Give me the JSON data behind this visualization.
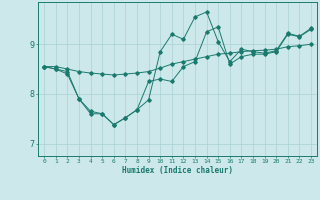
{
  "xlabel": "Humidex (Indice chaleur)",
  "bg_color": "#cce8ea",
  "line_color": "#1a7a6e",
  "grid_color": "#aad0d4",
  "xlim": [
    -0.5,
    23.5
  ],
  "ylim": [
    6.75,
    9.85
  ],
  "yticks": [
    7,
    8,
    9
  ],
  "xticks": [
    0,
    1,
    2,
    3,
    4,
    5,
    6,
    7,
    8,
    9,
    10,
    11,
    12,
    13,
    14,
    15,
    16,
    17,
    18,
    19,
    20,
    21,
    22,
    23
  ],
  "series1_x": [
    0,
    1,
    2,
    3,
    4,
    5,
    6,
    7,
    8,
    9,
    10,
    11,
    12,
    13,
    14,
    15,
    16,
    17,
    18,
    19,
    20,
    21,
    22,
    23
  ],
  "series1_y": [
    8.55,
    8.55,
    8.5,
    8.45,
    8.42,
    8.4,
    8.38,
    8.4,
    8.42,
    8.45,
    8.52,
    8.6,
    8.65,
    8.7,
    8.75,
    8.8,
    8.82,
    8.85,
    8.87,
    8.88,
    8.9,
    8.95,
    8.97,
    9.0
  ],
  "series2_x": [
    0,
    1,
    2,
    3,
    4,
    5,
    6,
    7,
    8,
    9,
    10,
    11,
    12,
    13,
    14,
    15,
    16,
    17,
    18,
    19,
    20,
    21,
    22,
    23
  ],
  "series2_y": [
    8.55,
    8.5,
    8.4,
    7.9,
    7.6,
    7.6,
    7.38,
    7.52,
    7.68,
    8.25,
    8.3,
    8.25,
    8.55,
    8.65,
    9.25,
    9.35,
    8.6,
    8.75,
    8.8,
    8.8,
    8.85,
    9.2,
    9.15,
    9.3
  ],
  "series3_x": [
    0,
    1,
    2,
    3,
    4,
    5,
    6,
    7,
    8,
    9,
    10,
    11,
    12,
    13,
    14,
    15,
    16,
    17,
    18,
    19,
    20,
    21,
    22,
    23
  ],
  "series3_y": [
    8.55,
    8.5,
    8.45,
    7.9,
    7.65,
    7.6,
    7.38,
    7.52,
    7.68,
    7.88,
    8.85,
    9.2,
    9.1,
    9.55,
    9.65,
    9.05,
    8.65,
    8.9,
    8.85,
    8.82,
    8.87,
    9.22,
    9.16,
    9.32
  ]
}
